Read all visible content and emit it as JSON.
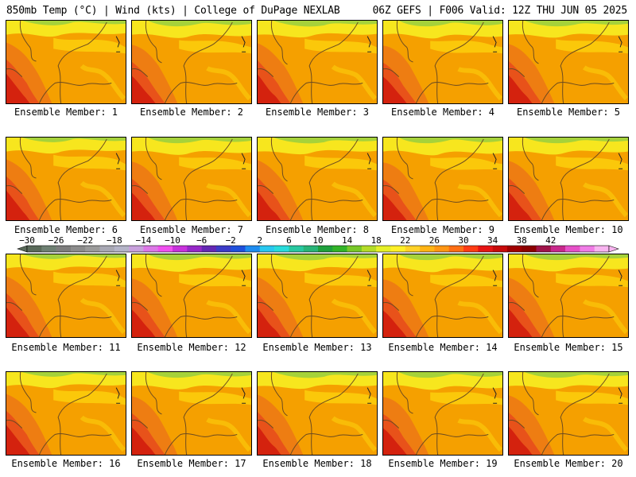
{
  "header": {
    "left": "850mb Temp (°C) | Wind (kts) | College of DuPage NEXLAB",
    "right": "06Z GEFS | F006 Valid: 12Z THU JUN 05 2025"
  },
  "member_label_prefix": "Ensemble Member:",
  "members": [
    "1",
    "2",
    "3",
    "4",
    "5",
    "6",
    "7",
    "8",
    "9",
    "10",
    "11",
    "12",
    "13",
    "14",
    "15",
    "16",
    "17",
    "18",
    "19",
    "20"
  ],
  "colorbar": {
    "tick_labels": [
      "-30",
      "-26",
      "-22",
      "-18",
      "-14",
      "-10",
      "-6",
      "-2",
      "2",
      "6",
      "10",
      "14",
      "18",
      "22",
      "26",
      "30",
      "34",
      "38",
      "42"
    ],
    "bins_per_label": 2,
    "colors": [
      "#5a6a5a",
      "#6e8072",
      "#7d7d7d",
      "#8c8c8c",
      "#9a9a9a",
      "#a8a8b4",
      "#b4b4c8",
      "#c8a0dc",
      "#dc78e6",
      "#f050f0",
      "#c832dc",
      "#9628c8",
      "#6428b4",
      "#3c3cc8",
      "#1e50dc",
      "#1e8cf0",
      "#28c8f0",
      "#28dcdc",
      "#28c8a0",
      "#28b478",
      "#1ea03c",
      "#32b428",
      "#78c828",
      "#b4dc28",
      "#e6f028",
      "#fff028",
      "#ffd228",
      "#ffb414",
      "#ff9614",
      "#ff6e14",
      "#ff3c14",
      "#e61414",
      "#c80a0a",
      "#a00000",
      "#8c0000",
      "#a0144b",
      "#c8288c",
      "#e650c8",
      "#f07ce6",
      "#f8b4f0"
    ]
  },
  "map_palette": {
    "green": "#a6d23a",
    "yellow": "#f7e61e",
    "gold": "#fbc80a",
    "orange": "#f5a000",
    "dark_orange": "#ee7d12",
    "red_orange": "#e8521a",
    "red": "#d4220e",
    "boundary": "#6b4a20"
  }
}
